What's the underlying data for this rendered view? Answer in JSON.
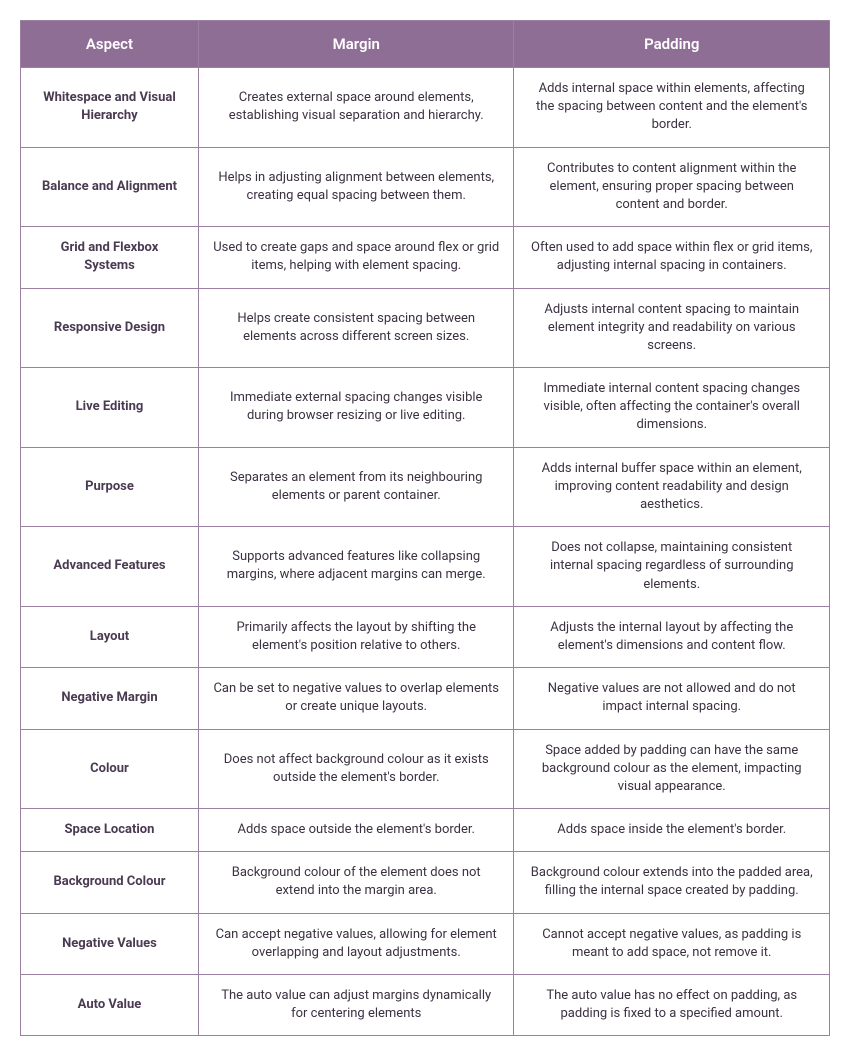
{
  "table": {
    "header_bg": "#8f6e96",
    "header_text_color": "#ffffff",
    "border_color": "#9b80a2",
    "cell_text_color": "#3c3142",
    "aspect_text_color": "#4a3a52",
    "font_size_header": 15,
    "font_size_cell": 13,
    "columns": [
      "Aspect",
      "Margin",
      "Padding"
    ],
    "column_widths_pct": [
      22,
      39,
      39
    ],
    "rows": [
      {
        "aspect": "Whitespace and Visual Hierarchy",
        "margin": "Creates external space around elements, establishing visual separation and hierarchy.",
        "padding": "Adds internal space within elements, affecting the spacing between content and the element's border."
      },
      {
        "aspect": "Balance and Alignment",
        "margin": "Helps in adjusting alignment between elements, creating equal spacing between them.",
        "padding": "Contributes to content alignment within the element, ensuring proper spacing between content and border."
      },
      {
        "aspect": "Grid and Flexbox Systems",
        "margin": "Used to create gaps and space around flex or grid items, helping with element spacing.",
        "padding": "Often used to add space within flex or grid items, adjusting internal spacing in containers."
      },
      {
        "aspect": "Responsive Design",
        "margin": "Helps create consistent spacing between elements across different screen sizes.",
        "padding": "Adjusts internal content spacing to maintain element integrity and readability on various screens."
      },
      {
        "aspect": "Live Editing",
        "margin": "Immediate external spacing changes visible during browser resizing or live editing.",
        "padding": "Immediate internal content spacing changes visible, often affecting the container's overall dimensions."
      },
      {
        "aspect": "Purpose",
        "margin": "Separates an element from its neighbouring elements or parent container.",
        "padding": "Adds internal buffer space within an element, improving content readability and design aesthetics."
      },
      {
        "aspect": "Advanced Features",
        "margin": "Supports advanced features like collapsing margins, where adjacent margins can merge.",
        "padding": "Does not collapse, maintaining consistent internal spacing regardless of surrounding elements."
      },
      {
        "aspect": "Layout",
        "margin": "Primarily affects the layout by shifting the element's position relative to others.",
        "padding": "Adjusts the internal layout by affecting the element's dimensions and content flow."
      },
      {
        "aspect": "Negative Margin",
        "margin": "Can be set to negative values to overlap elements or create unique layouts.",
        "padding": "Negative values are not allowed and do not impact internal spacing."
      },
      {
        "aspect": "Colour",
        "margin": "Does not affect background colour as it exists outside the element's border.",
        "padding": "Space added by padding can have the same background colour as the element, impacting visual appearance."
      },
      {
        "aspect": "Space Location",
        "margin": "Adds space outside the element's border.",
        "padding": "Adds space inside the element's border."
      },
      {
        "aspect": "Background Colour",
        "margin": "Background colour of the element does not extend into the margin area.",
        "padding": "Background colour extends into the padded area, filling the internal space created by padding."
      },
      {
        "aspect": "Negative Values",
        "margin": "Can accept negative values, allowing for element overlapping and layout adjustments.",
        "padding": "Cannot accept negative values, as padding is meant to add space, not remove it."
      },
      {
        "aspect": "Auto Value",
        "margin": "The auto value can adjust margins dynamically for centering elements",
        "padding": "The auto value has no effect on padding, as padding is fixed to a specified amount."
      }
    ]
  }
}
